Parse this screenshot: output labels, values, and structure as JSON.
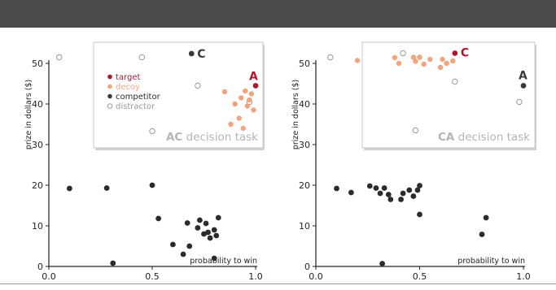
{
  "chart_data": [
    {
      "type": "scatter",
      "xlabel": "probability to win",
      "ylabel": "prize in dollars ($)",
      "xlim": [
        0.0,
        1.0
      ],
      "ylim": [
        0,
        50
      ],
      "x_ticks": [
        "0.0",
        "0.5",
        "1.0"
      ],
      "y_ticks": [
        "0",
        "10",
        "20",
        "30",
        "40",
        "50"
      ],
      "points": [
        [
          0.1,
          19.2
        ],
        [
          0.28,
          19.3
        ],
        [
          0.5,
          20.0
        ],
        [
          0.31,
          0.8
        ],
        [
          0.53,
          11.8
        ],
        [
          0.6,
          5.4
        ],
        [
          0.65,
          3.0
        ],
        [
          0.67,
          10.7
        ],
        [
          0.68,
          5.0
        ],
        [
          0.72,
          9.5
        ],
        [
          0.73,
          11.4
        ],
        [
          0.76,
          10.6
        ],
        [
          0.77,
          8.4
        ],
        [
          0.78,
          7.0
        ],
        [
          0.8,
          9.0
        ],
        [
          0.81,
          7.6
        ],
        [
          0.82,
          12.0
        ],
        [
          0.75,
          8.0
        ],
        [
          0.8,
          2.0
        ]
      ],
      "inset": {
        "legend": [
          {
            "label": "target",
            "color": "#b0182b"
          },
          {
            "label": "decoy",
            "color": "#f0a57e"
          },
          {
            "label": "competitor",
            "color": "#3a3a3a"
          },
          {
            "label": "distractor",
            "color": "#ffffff"
          }
        ],
        "markers": {
          "target": "A",
          "competitor": "C"
        },
        "task_letters": "AC",
        "task_text": "decision task",
        "target": [
          1.0,
          44.5
        ],
        "competitor": [
          0.69,
          52.4
        ],
        "decoys": [
          [
            0.85,
            43.0
          ],
          [
            0.88,
            35.0
          ],
          [
            0.9,
            40.0
          ],
          [
            0.92,
            36.5
          ],
          [
            0.94,
            34.0
          ],
          [
            0.95,
            43.2
          ],
          [
            0.96,
            39.5
          ],
          [
            0.97,
            41.0
          ],
          [
            0.98,
            42.5
          ],
          [
            0.99,
            38.5
          ],
          [
            0.93,
            41.5
          ]
        ],
        "distractors": [
          [
            0.05,
            51.5
          ],
          [
            0.45,
            51.5
          ],
          [
            0.5,
            33.3
          ],
          [
            0.72,
            44.5
          ],
          [
            0.97,
            40.5
          ]
        ]
      }
    },
    {
      "type": "scatter",
      "xlabel": "probability to win",
      "ylabel": "prize in dollars ($)",
      "xlim": [
        0.0,
        1.0
      ],
      "ylim": [
        0,
        50
      ],
      "x_ticks": [
        "0.0",
        "0.5",
        "1.0"
      ],
      "y_ticks": [
        "0",
        "10",
        "20",
        "30",
        "40",
        "50"
      ],
      "points": [
        [
          0.1,
          19.2
        ],
        [
          0.17,
          18.2
        ],
        [
          0.26,
          19.8
        ],
        [
          0.29,
          19.3
        ],
        [
          0.31,
          18.0
        ],
        [
          0.33,
          19.3
        ],
        [
          0.35,
          17.7
        ],
        [
          0.36,
          16.5
        ],
        [
          0.41,
          16.5
        ],
        [
          0.42,
          18.0
        ],
        [
          0.45,
          18.8
        ],
        [
          0.47,
          17.3
        ],
        [
          0.49,
          18.8
        ],
        [
          0.5,
          19.9
        ],
        [
          0.5,
          12.8
        ],
        [
          0.32,
          0.7
        ],
        [
          0.8,
          7.9
        ],
        [
          0.82,
          12.0
        ]
      ],
      "inset": {
        "markers": {
          "target": "C",
          "competitor": "A"
        },
        "task_letters": "CA",
        "task_text": "decision task",
        "target": [
          0.67,
          52.5
        ],
        "competitor": [
          1.0,
          44.5
        ],
        "decoys": [
          [
            0.2,
            50.7
          ],
          [
            0.38,
            51.4
          ],
          [
            0.4,
            50.0
          ],
          [
            0.47,
            51.5
          ],
          [
            0.48,
            50.5
          ],
          [
            0.5,
            51.5
          ],
          [
            0.52,
            49.8
          ],
          [
            0.55,
            51.0
          ],
          [
            0.6,
            49.0
          ],
          [
            0.61,
            51.0
          ],
          [
            0.63,
            50.0
          ],
          [
            0.66,
            50.6
          ]
        ],
        "distractors": [
          [
            0.07,
            51.5
          ],
          [
            0.42,
            52.5
          ],
          [
            0.48,
            33.5
          ],
          [
            0.67,
            45.5
          ],
          [
            0.98,
            40.5
          ]
        ]
      }
    }
  ]
}
